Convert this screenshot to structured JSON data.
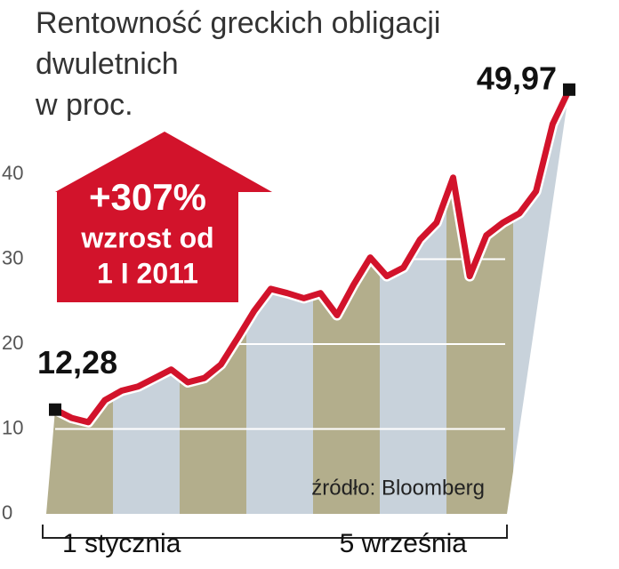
{
  "chart_data": {
    "type": "line",
    "title": [
      "Rentowność greckich obligacji",
      "dwuletnich",
      "w proc."
    ],
    "annotation": [
      "+307%",
      "wzrost od",
      "1 I 2011"
    ],
    "source": "źródło: Bloomberg",
    "categories": [
      "1 stycznia",
      null,
      null,
      null,
      null,
      null,
      null,
      null,
      null,
      null,
      null,
      null,
      null,
      null,
      null,
      null,
      null,
      null,
      null,
      null,
      null,
      null,
      null,
      null,
      null,
      null,
      null,
      null,
      null,
      null,
      null,
      "5 września"
    ],
    "values": [
      12.28,
      11.3,
      10.8,
      13.4,
      14.5,
      15,
      16,
      17,
      15.5,
      16,
      17.6,
      20.7,
      23.9,
      26.5,
      26,
      25.4,
      26,
      23.4,
      27,
      30.2,
      28,
      29,
      32.3,
      34.3,
      39.6,
      28,
      32.8,
      34.3,
      35.4,
      38,
      45.9,
      49.97
    ],
    "value_labels": [
      "12,28",
      null,
      null,
      null,
      null,
      null,
      null,
      null,
      null,
      null,
      null,
      null,
      null,
      null,
      null,
      null,
      null,
      null,
      null,
      null,
      null,
      null,
      null,
      null,
      null,
      null,
      null,
      null,
      null,
      null,
      null,
      "49,97"
    ],
    "color": "#d2132b",
    "ylim": [
      0,
      60
    ],
    "yticks": [
      0,
      10,
      20,
      30,
      40
    ],
    "grid": true
  }
}
